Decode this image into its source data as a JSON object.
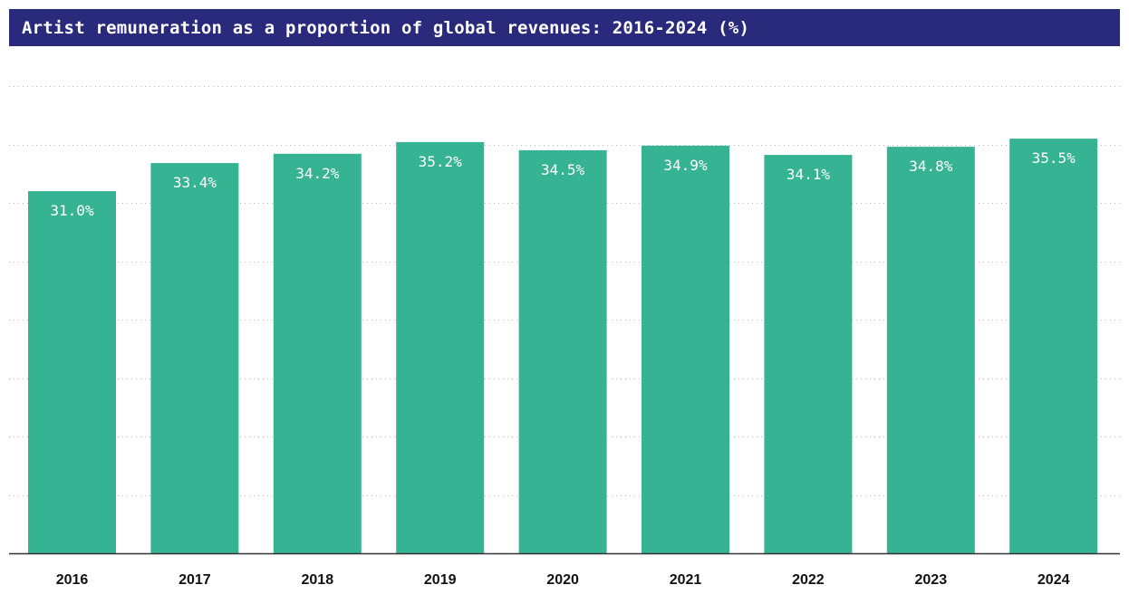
{
  "title": "Artist remuneration as a proportion of global revenues: 2016-2024 (%)",
  "colors": {
    "bar": "#36b392",
    "header_bg": "#2a2a7c",
    "grid": "#b8b8b8",
    "axis": "#333333"
  },
  "chart_data": {
    "type": "bar",
    "title": "Artist remuneration as a proportion of global revenues: 2016-2024 (%)",
    "categories": [
      "2016",
      "2017",
      "2018",
      "2019",
      "2020",
      "2021",
      "2022",
      "2023",
      "2024"
    ],
    "values": [
      31.0,
      33.4,
      34.2,
      35.2,
      34.5,
      34.9,
      34.1,
      34.8,
      35.5
    ],
    "value_labels": [
      "31.0%",
      "33.4%",
      "34.2%",
      "35.2%",
      "34.5%",
      "34.9%",
      "34.1%",
      "34.8%",
      "35.5%"
    ],
    "xlabel": "",
    "ylabel": "",
    "ylim": [
      0,
      40
    ],
    "gridlines": [
      5,
      10,
      15,
      20,
      25,
      30,
      35,
      40
    ],
    "grid": true,
    "y_tick_labels_shown": false
  }
}
